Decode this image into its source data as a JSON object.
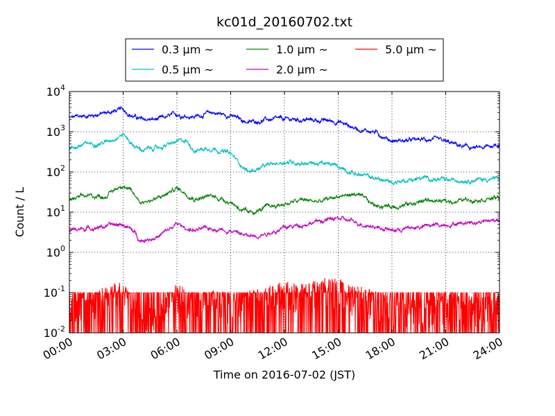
{
  "chart_data": {
    "type": "line",
    "title": "kc01d_20160702.txt",
    "xlabel": "Time on 2016-07-02 (JST)",
    "ylabel": "Count / L",
    "y_scale": "log",
    "ylim": [
      0.01,
      10000
    ],
    "xlim": [
      "00:00",
      "24:00"
    ],
    "x_ticks": [
      "00:00",
      "03:00",
      "06:00",
      "09:00",
      "12:00",
      "15:00",
      "18:00",
      "21:00",
      "24:00"
    ],
    "y_ticks": [
      {
        "base": "10",
        "exp": "-2"
      },
      {
        "base": "10",
        "exp": "-1"
      },
      {
        "base": "10",
        "exp": "0"
      },
      {
        "base": "10",
        "exp": "1"
      },
      {
        "base": "10",
        "exp": "2"
      },
      {
        "base": "10",
        "exp": "3"
      },
      {
        "base": "10",
        "exp": "4"
      }
    ],
    "grid": true,
    "legend_position": "top-center",
    "x_hours": [
      0,
      1,
      2,
      3,
      3.5,
      4,
      5,
      6,
      6.5,
      7,
      8,
      9,
      10,
      11,
      12,
      13,
      14,
      15,
      16,
      17,
      18,
      19,
      20,
      21,
      22,
      23,
      24
    ],
    "series": [
      {
        "name": "0.3 μm ~",
        "color": "#0000ff",
        "values": [
          2200,
          2500,
          2900,
          3600,
          2500,
          2000,
          2000,
          2700,
          2500,
          2400,
          3000,
          2500,
          1700,
          2000,
          2000,
          2000,
          1900,
          1800,
          1200,
          1000,
          600,
          600,
          650,
          550,
          420,
          380,
          500
        ]
      },
      {
        "name": "0.5 μm ~",
        "color": "#00bfbf",
        "values": [
          380,
          500,
          550,
          900,
          500,
          350,
          400,
          550,
          600,
          350,
          400,
          280,
          100,
          140,
          180,
          170,
          160,
          140,
          90,
          70,
          55,
          65,
          70,
          60,
          65,
          65,
          70
        ]
      },
      {
        "name": "1.0 μm ~",
        "color": "#008000",
        "values": [
          20,
          25,
          25,
          50,
          30,
          18,
          22,
          40,
          30,
          22,
          25,
          18,
          9,
          13,
          16,
          20,
          18,
          25,
          28,
          15,
          14,
          16,
          20,
          18,
          20,
          22,
          22
        ]
      },
      {
        "name": "2.0 μm ~",
        "color": "#bf00bf",
        "values": [
          3.5,
          4,
          4.5,
          5,
          3.5,
          2,
          2.5,
          5,
          4,
          3.5,
          4,
          3.5,
          2.5,
          3,
          4,
          5,
          6,
          7,
          5.5,
          4.5,
          3.5,
          4,
          4.5,
          5,
          5.5,
          6,
          6.5
        ]
      },
      {
        "name": "5.0 μm ~",
        "color": "#ff0000",
        "values": [
          0.06,
          0.05,
          0.08,
          0.1,
          0.04,
          0.03,
          0.025,
          0.09,
          0.07,
          0.05,
          0.06,
          0.05,
          0.06,
          0.08,
          0.1,
          0.09,
          0.12,
          0.13,
          0.08,
          0.06,
          0.05,
          0.04,
          0.04,
          0.05,
          0.05,
          0.04,
          0.05
        ]
      }
    ]
  }
}
